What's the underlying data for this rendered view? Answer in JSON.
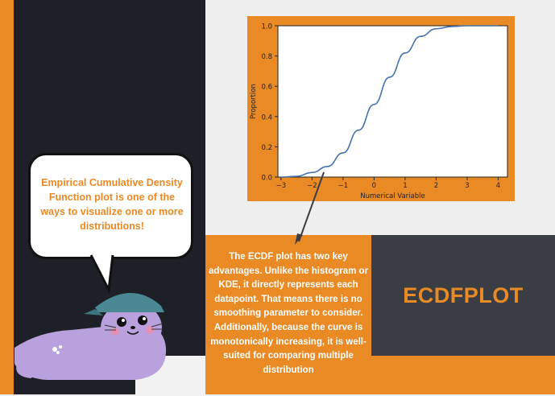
{
  "colors": {
    "orange": "#ea8a25",
    "navy": "#1d2027",
    "slate": "#3a3d44",
    "curve": "#4472b4"
  },
  "bubble": {
    "text": "Empirical Cumulative Density Function plot is one of the ways to visualize one or more distributions!"
  },
  "description": {
    "text": "The ECDF plot has two key advantages. Unlike the histogram or KDE, it directly represents each datapoint. That means there is no smoothing parameter to consider. Additionally, because the curve is monotonically increasing, it is well-suited for comparing multiple distribution"
  },
  "title": {
    "text": "ECDFPLOT"
  },
  "chart_data": {
    "type": "line",
    "xlabel": "Numerical Variable",
    "ylabel": "Proportion",
    "xlim": [
      -3.1,
      4.3
    ],
    "ylim": [
      0,
      1.0
    ],
    "xticks": [
      "−3",
      "−2",
      "−1",
      "0",
      "1",
      "2",
      "3",
      "4"
    ],
    "xtick_values": [
      -3,
      -2,
      -1,
      0,
      1,
      2,
      3,
      4
    ],
    "yticks": [
      "0.0",
      "0.2",
      "0.4",
      "0.6",
      "0.8",
      "1.0"
    ],
    "ytick_values": [
      0,
      0.2,
      0.4,
      0.6,
      0.8,
      1.0
    ],
    "grid": false,
    "series": [
      {
        "x": [
          -3.0,
          -2.5,
          -2.0,
          -1.5,
          -1.0,
          -0.5,
          0.0,
          0.5,
          1.0,
          1.5,
          2.0,
          2.5,
          3.0,
          3.5,
          4.0
        ],
        "y": [
          0.0,
          0.005,
          0.03,
          0.07,
          0.16,
          0.31,
          0.48,
          0.66,
          0.82,
          0.93,
          0.98,
          0.995,
          1.0,
          1.0,
          1.0
        ]
      }
    ]
  }
}
